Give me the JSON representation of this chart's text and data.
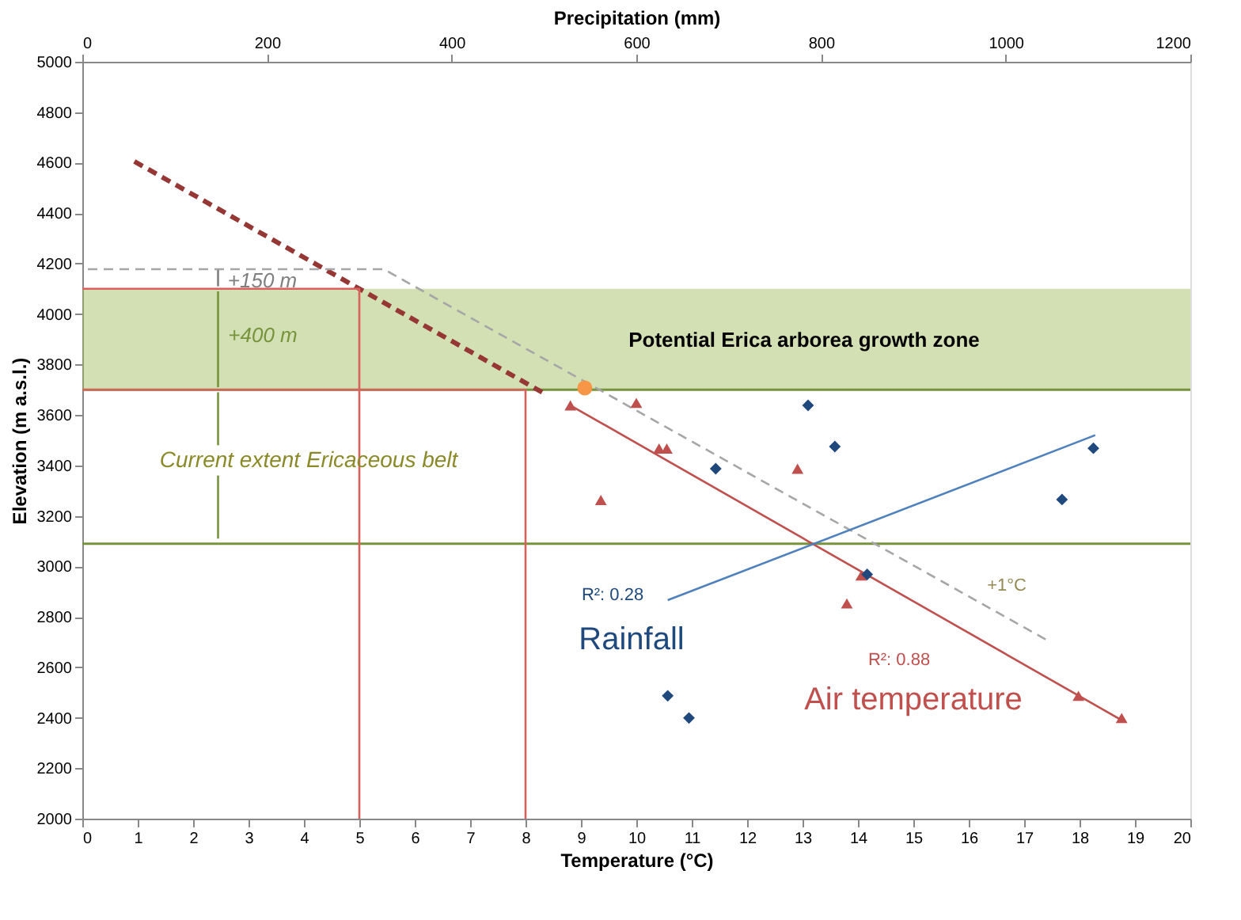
{
  "chart_data": {
    "type": "scatter",
    "xlabel": "Temperature (°C)",
    "ylabel": "Elevation (m a.s.l.)",
    "x2label": "Precipitation (mm)",
    "xlim": [
      0,
      20
    ],
    "xticks": [
      0,
      1,
      2,
      3,
      4,
      5,
      6,
      7,
      8,
      9,
      10,
      11,
      12,
      13,
      14,
      15,
      16,
      17,
      18,
      19,
      20
    ],
    "x2lim": [
      0,
      1200
    ],
    "x2ticks": [
      0,
      200,
      400,
      600,
      800,
      1000,
      1200
    ],
    "ylim": [
      2000,
      5000
    ],
    "yticks": [
      2000,
      2200,
      2400,
      2600,
      2800,
      3000,
      3200,
      3400,
      3600,
      3800,
      4000,
      4200,
      4400,
      4600,
      4800,
      5000
    ],
    "grid": false,
    "series": [
      {
        "marker": "triangle",
        "color": "#c0504d",
        "x": [
          8.81,
          10.0,
          10.41,
          10.55,
          9.36,
          12.91,
          14.06,
          13.8,
          17.98,
          18.76
        ],
        "values": [
          3638,
          3648,
          3467,
          3467,
          3263,
          3387,
          2964,
          2853,
          2487,
          2399
        ]
      },
      {
        "marker": "circle",
        "color": "#f79646",
        "x": [
          9.07
        ],
        "values": [
          3707
        ]
      },
      {
        "marker": "diamond",
        "color": "#1f497d",
        "axis": "x2",
        "x": [
          786,
          815,
          686,
          1061,
          1095,
          850,
          634,
          657
        ],
        "values": [
          3638,
          3475,
          3387,
          3265,
          3468,
          2968,
          2487,
          2399
        ]
      },
      {
        "type": "line",
        "line_style": "solid",
        "color": "#c0504d",
        "x": [
          8.81,
          18.76
        ],
        "values": [
          3638,
          2390
        ]
      },
      {
        "type": "line",
        "line_style": "dashed",
        "color": "#953735",
        "x": [
          0.94,
          8.3
        ],
        "values": [
          4605,
          3690
        ]
      },
      {
        "type": "line",
        "line_style": "dashed",
        "color": "#a6a6a6",
        "x": [
          0.1,
          5.44,
          17.4
        ],
        "values": [
          4178,
          4178,
          2709
        ]
      },
      {
        "type": "line",
        "line_style": "solid",
        "color": "#4f81bd",
        "axis": "x2",
        "x": [
          634,
          1097
        ],
        "values": [
          2866,
          3520
        ]
      },
      {
        "type": "line",
        "line_style": "solid",
        "color": "#d9605c",
        "x": [
          0,
          5,
          5
        ],
        "values": [
          4100,
          4100,
          2000
        ]
      },
      {
        "type": "line",
        "line_style": "solid",
        "color": "#d9605c",
        "x": [
          0,
          8,
          8
        ],
        "values": [
          3700,
          3700,
          2000
        ]
      },
      {
        "type": "line",
        "line_style": "solid",
        "color": "#77933c",
        "x": [
          2.45,
          2.45
        ],
        "values": [
          3110,
          3360
        ]
      },
      {
        "type": "line",
        "line_style": "solid",
        "color": "#77933c",
        "x": [
          2.45,
          2.45
        ],
        "values": [
          3480,
          3690
        ]
      },
      {
        "type": "line",
        "line_style": "solid",
        "color": "#77933c",
        "x": [
          2.45,
          2.45
        ],
        "values": [
          3710,
          4090
        ]
      },
      {
        "type": "line",
        "line_style": "solid",
        "color": "#7f7f7f",
        "x": [
          2.45,
          2.45
        ],
        "values": [
          4110,
          4175
        ]
      }
    ],
    "ref_lines": [
      {
        "axis": "y",
        "value": 3090,
        "color": "#77933c"
      },
      {
        "axis": "y",
        "value": 3700,
        "color": "#77933c"
      }
    ],
    "bands": [
      {
        "axis": "y",
        "from": 3700,
        "to": 4100,
        "color": "#9bbb59"
      }
    ],
    "annotations": [
      {
        "text": "+150 m",
        "x": 3.25,
        "y": 4132
      },
      "+400 m",
      "Current  extent Ericaceous belt",
      "Potential Erica arborea growth zone",
      "R²: 0.28",
      "Rainfall",
      "R²: 0.88",
      "Air temperature",
      "+1°C"
    ]
  }
}
